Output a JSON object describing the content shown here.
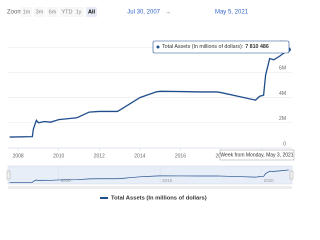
{
  "zoom_label": "Zoom",
  "zoom_buttons": [
    "1m",
    "3m",
    "6m",
    "YTD",
    "1y",
    "All"
  ],
  "active_button": 5,
  "range_start": "Jul 30, 2007",
  "range_arrow": "→",
  "range_end": "May 5, 2021",
  "chart_data": {
    "type": "line",
    "x": [
      2007.58,
      2008.7,
      2008.75,
      2008.9,
      2009.0,
      2009.3,
      2009.6,
      2010.0,
      2010.9,
      2011.5,
      2012.0,
      2012.9,
      2013.5,
      2014.0,
      2014.8,
      2015.0,
      2016.0,
      2017.0,
      2017.8,
      2018.0,
      2019.0,
      2019.7,
      2019.9,
      2020.1,
      2020.2,
      2020.4,
      2020.6,
      2020.9,
      2021.34
    ],
    "series": [
      {
        "name": "Total Assets (In millions of dollars)",
        "color": "#1f4e8c",
        "values": [
          870000,
          900000,
          1500000,
          2200000,
          2000000,
          2100000,
          2050000,
          2250000,
          2400000,
          2850000,
          2900000,
          2900000,
          3500000,
          4000000,
          4450000,
          4500000,
          4480000,
          4450000,
          4450000,
          4400000,
          4050000,
          3800000,
          4100000,
          4200000,
          5800000,
          7100000,
          7000000,
          7300000,
          7810486
        ]
      }
    ],
    "xlim": [
      2007.5,
      2021.5
    ],
    "xticks": [
      2008,
      2010,
      2012,
      2014,
      2016,
      2018,
      2020
    ],
    "ylim": [
      0,
      10000000
    ],
    "yticks": [
      {
        "value": 0,
        "label": "0"
      },
      {
        "value": 2000000,
        "label": "2M"
      },
      {
        "value": 4000000,
        "label": "4M"
      },
      {
        "value": 6000000,
        "label": "6M"
      },
      {
        "value": 8000000,
        "label": "8M"
      }
    ],
    "grid": true,
    "navigator_ticks": [
      2010,
      2015,
      2020
    ],
    "tooltip": {
      "label": "Total Assets (In millions of dollars):",
      "value_label": "7 810 486",
      "date": "Week from Monday, May 3, 2021"
    }
  }
}
